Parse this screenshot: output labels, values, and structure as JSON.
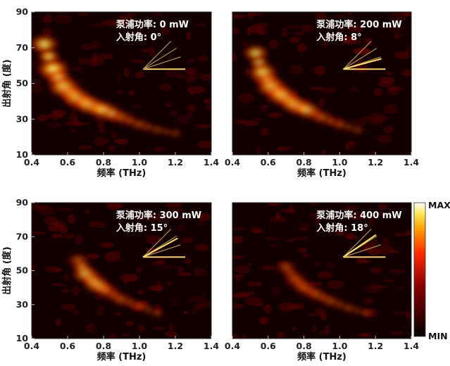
{
  "colorbar": {
    "max_label": "MAX",
    "min_label": "MIN"
  },
  "chart_data": [
    {
      "type": "heatmap",
      "xlabel": "频率 (THz)",
      "ylabel": "出射角 (度)",
      "xlim": [
        0.4,
        1.4
      ],
      "ylim": [
        10,
        90
      ],
      "xticks": [
        "0.4",
        "0.6",
        "0.8",
        "1.0",
        "1.2",
        "1.4"
      ],
      "yticks": [
        "10",
        "30",
        "50",
        "70",
        "90"
      ],
      "show_ylabel": true,
      "annotation": {
        "power": "泵浦功率: 0 mW",
        "angle": "入射角: 0°"
      },
      "incidence_angle_deg": 0,
      "ridge": [
        {
          "f": 0.47,
          "a": 72,
          "v": 0.8
        },
        {
          "f": 0.52,
          "a": 58,
          "v": 1.0
        },
        {
          "f": 0.58,
          "a": 48,
          "v": 0.95
        },
        {
          "f": 0.65,
          "a": 42,
          "v": 0.85
        },
        {
          "f": 0.72,
          "a": 38,
          "v": 0.8
        },
        {
          "f": 0.8,
          "a": 35,
          "v": 0.75
        },
        {
          "f": 0.9,
          "a": 31,
          "v": 0.55
        },
        {
          "f": 1.0,
          "a": 27,
          "v": 0.35
        },
        {
          "f": 1.1,
          "a": 24,
          "v": 0.2
        },
        {
          "f": 1.2,
          "a": 22,
          "v": 0.12
        }
      ]
    },
    {
      "type": "heatmap",
      "xlabel": "频率 (THz)",
      "ylabel": "",
      "xlim": [
        0.4,
        1.4
      ],
      "ylim": [
        10,
        90
      ],
      "xticks": [
        "0.4",
        "0.6",
        "0.8",
        "1.0",
        "1.2",
        "1.4"
      ],
      "yticks": [],
      "show_ylabel": false,
      "annotation": {
        "power": "泵浦功率: 200 mW",
        "angle": "入射角: 8°"
      },
      "incidence_angle_deg": 8,
      "ridge": [
        {
          "f": 0.53,
          "a": 67,
          "v": 0.65
        },
        {
          "f": 0.57,
          "a": 56,
          "v": 0.85
        },
        {
          "f": 0.62,
          "a": 48,
          "v": 0.9
        },
        {
          "f": 0.68,
          "a": 43,
          "v": 0.85
        },
        {
          "f": 0.75,
          "a": 38,
          "v": 0.75
        },
        {
          "f": 0.82,
          "a": 35,
          "v": 0.65
        },
        {
          "f": 0.9,
          "a": 31,
          "v": 0.5
        },
        {
          "f": 1.0,
          "a": 27,
          "v": 0.3
        },
        {
          "f": 1.1,
          "a": 24,
          "v": 0.15
        }
      ]
    },
    {
      "type": "heatmap",
      "xlabel": "频率 (THz)",
      "ylabel": "出射角 (度)",
      "xlim": [
        0.4,
        1.4
      ],
      "ylim": [
        10,
        90
      ],
      "xticks": [
        "0.4",
        "0.6",
        "0.8",
        "1.0",
        "1.2",
        "1.4"
      ],
      "yticks": [
        "10",
        "30",
        "50",
        "70",
        "90"
      ],
      "show_ylabel": true,
      "annotation": {
        "power": "泵浦功率: 300 mW",
        "angle": "入射角: 15°"
      },
      "incidence_angle_deg": 15,
      "ridge": [
        {
          "f": 0.66,
          "a": 56,
          "v": 0.55
        },
        {
          "f": 0.7,
          "a": 48,
          "v": 0.7
        },
        {
          "f": 0.76,
          "a": 42,
          "v": 0.7
        },
        {
          "f": 0.82,
          "a": 38,
          "v": 0.6
        },
        {
          "f": 0.9,
          "a": 33,
          "v": 0.45
        },
        {
          "f": 1.0,
          "a": 29,
          "v": 0.3
        },
        {
          "f": 1.1,
          "a": 25,
          "v": 0.15
        }
      ]
    },
    {
      "type": "heatmap",
      "xlabel": "频率 (THz)",
      "ylabel": "",
      "xlim": [
        0.4,
        1.4
      ],
      "ylim": [
        10,
        90
      ],
      "xticks": [
        "0.4",
        "0.6",
        "0.8",
        "1.0",
        "1.2",
        "1.4"
      ],
      "yticks": [],
      "show_ylabel": false,
      "annotation": {
        "power": "泵浦功率: 400 mW",
        "angle": "入射角: 18°"
      },
      "incidence_angle_deg": 18,
      "ridge": [
        {
          "f": 0.7,
          "a": 52,
          "v": 0.45
        },
        {
          "f": 0.75,
          "a": 45,
          "v": 0.55
        },
        {
          "f": 0.8,
          "a": 40,
          "v": 0.55
        },
        {
          "f": 0.87,
          "a": 36,
          "v": 0.45
        },
        {
          "f": 0.95,
          "a": 32,
          "v": 0.35
        },
        {
          "f": 1.05,
          "a": 28,
          "v": 0.22
        },
        {
          "f": 1.15,
          "a": 25,
          "v": 0.12
        }
      ]
    }
  ]
}
